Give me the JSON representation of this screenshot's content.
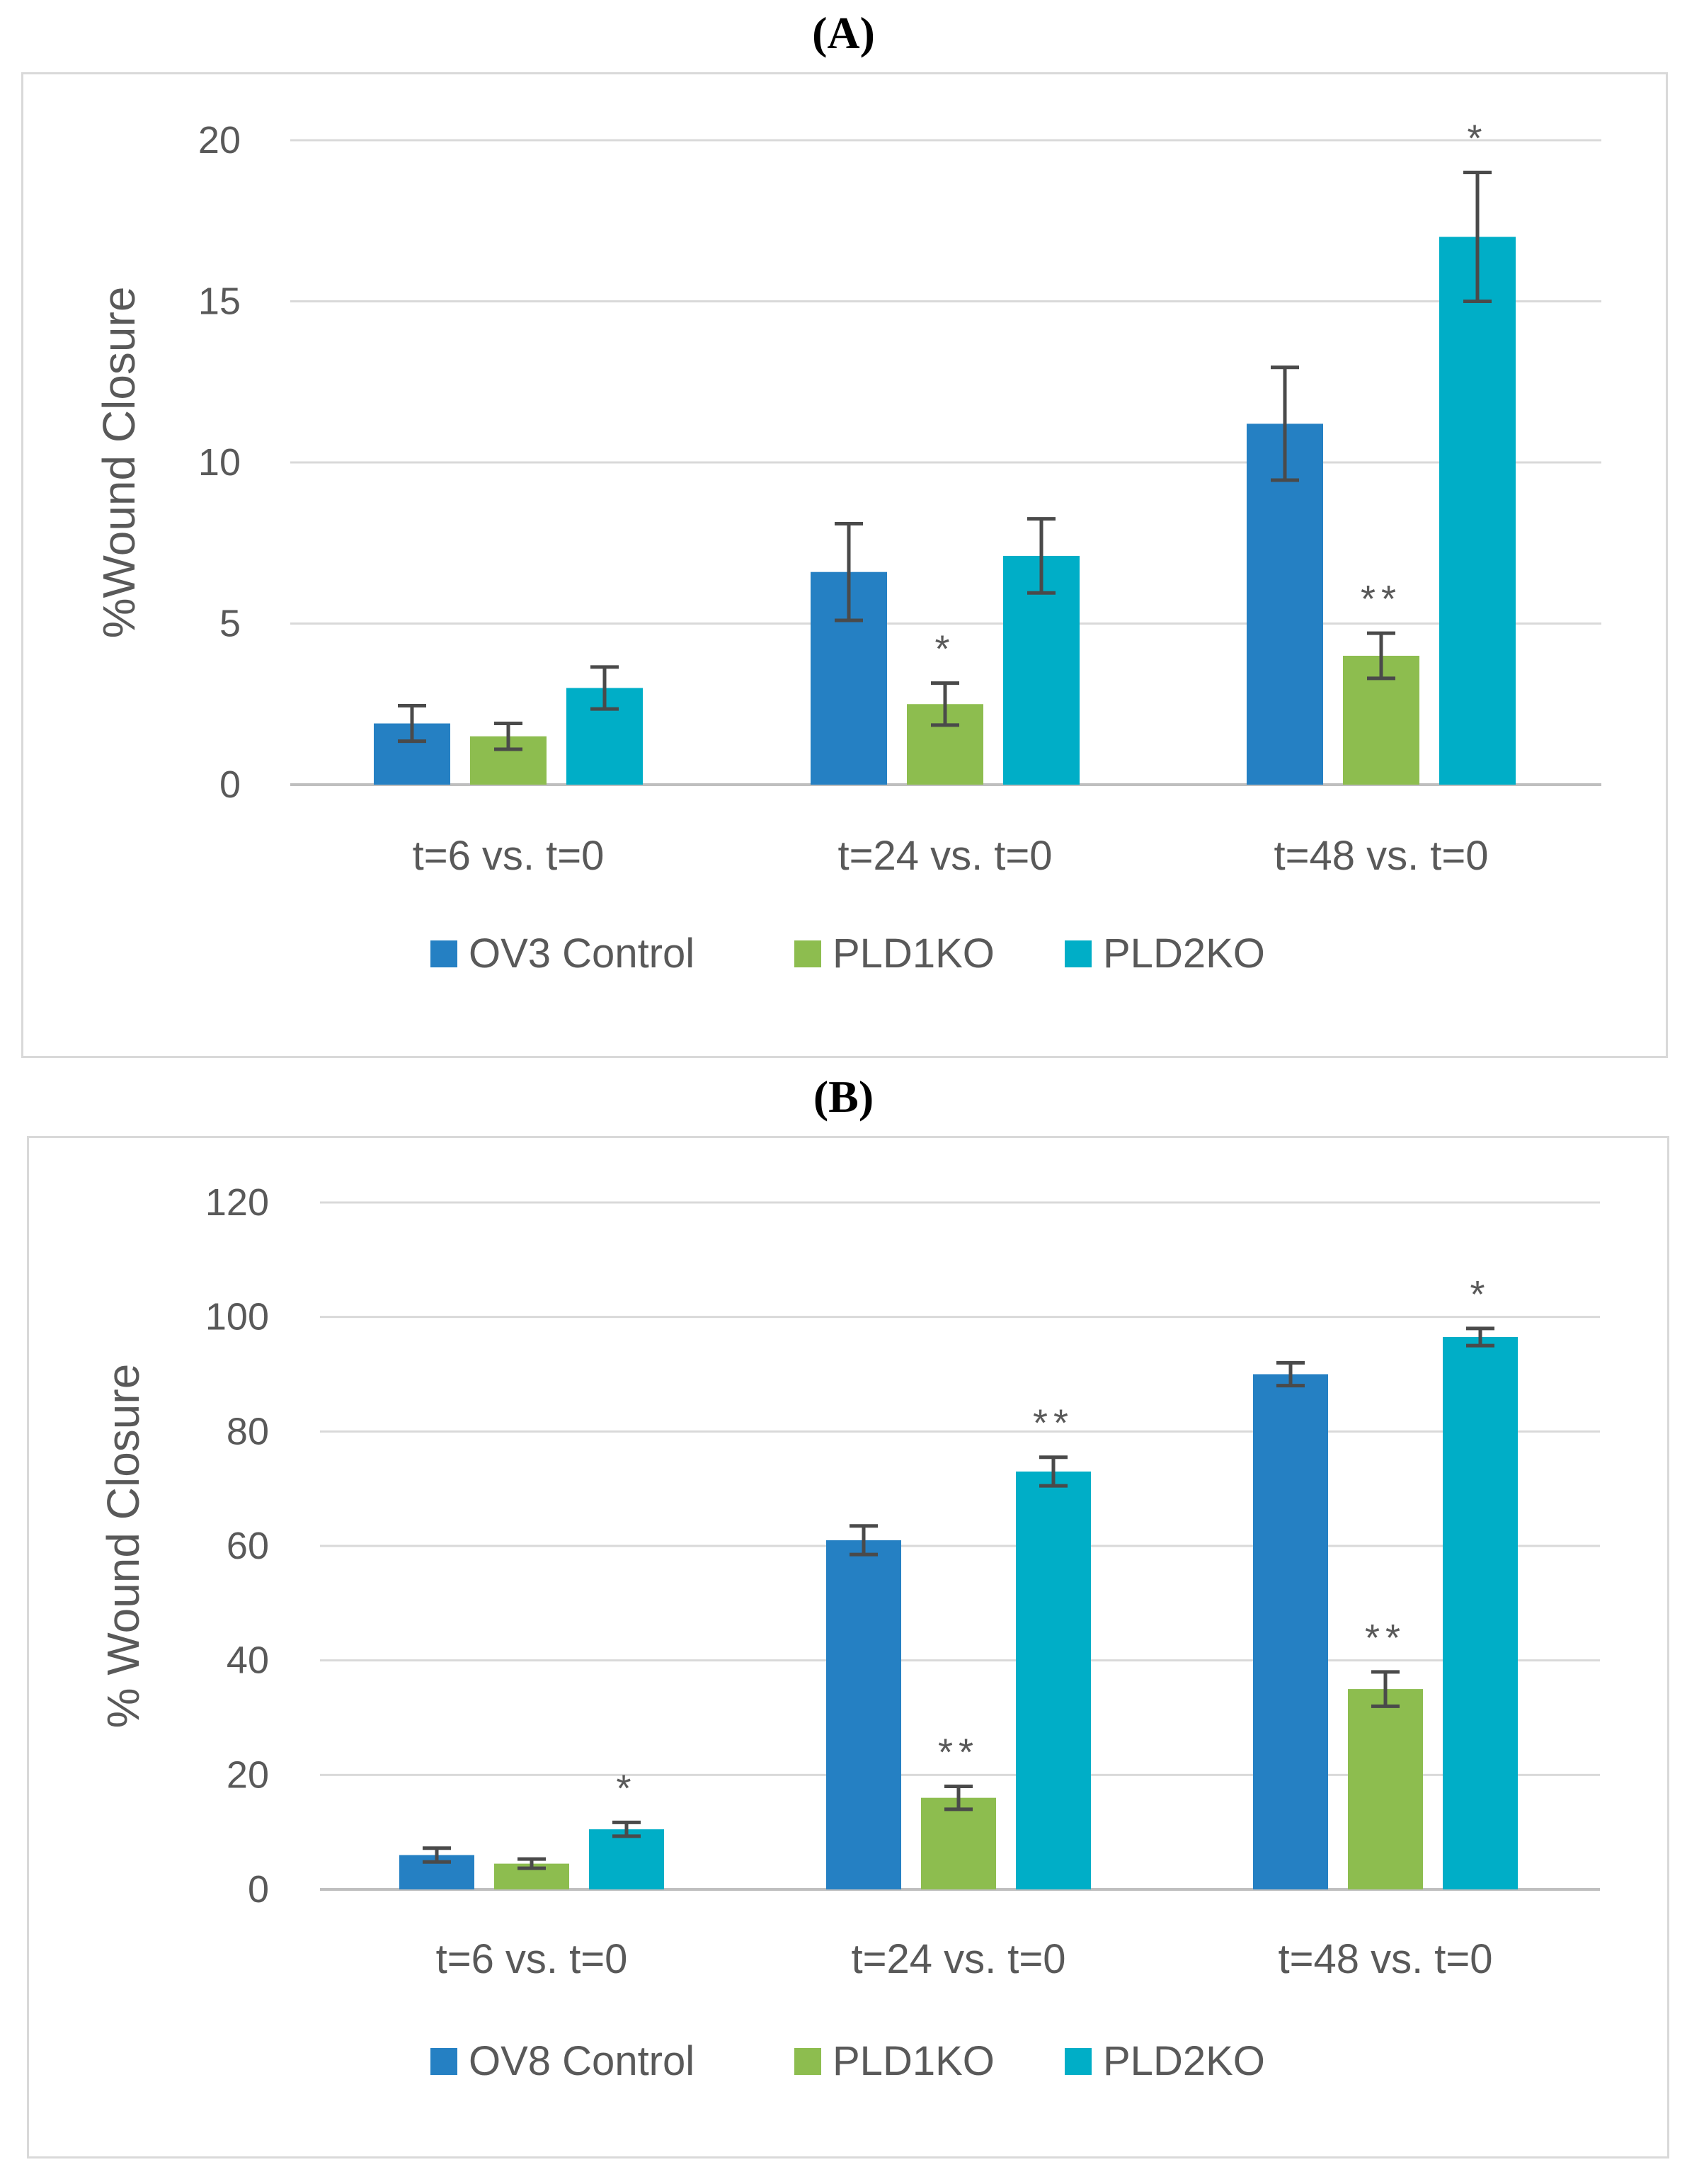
{
  "chart_data": [
    {
      "type": "bar",
      "panel": "(A)",
      "ylabel": "%Wound Closure",
      "ylim": [
        0,
        20
      ],
      "yticks": [
        0,
        5,
        10,
        15,
        20
      ],
      "categories": [
        "t=6 vs. t=0",
        "t=24 vs. t=0",
        "t=48 vs. t=0"
      ],
      "series": [
        {
          "name": "OV3 Control",
          "color": "#2580C3",
          "values": [
            1.9,
            6.6,
            11.2
          ],
          "errors": [
            0.55,
            1.5,
            1.75
          ],
          "sig": [
            "",
            "",
            ""
          ]
        },
        {
          "name": "PLD1KO",
          "color": "#8DBD4F",
          "values": [
            1.5,
            2.5,
            4.0
          ],
          "errors": [
            0.4,
            0.65,
            0.7
          ],
          "sig": [
            "",
            "*",
            "**"
          ]
        },
        {
          "name": "PLD2KO",
          "color": "#00AEC7",
          "values": [
            3.0,
            7.1,
            17.0
          ],
          "errors": [
            0.65,
            1.15,
            2.0
          ],
          "sig": [
            "",
            "",
            "*"
          ]
        }
      ],
      "legend": "bottom",
      "grid": true
    },
    {
      "type": "bar",
      "panel": "(B)",
      "ylabel": "% Wound Closure",
      "ylim": [
        0,
        120
      ],
      "yticks": [
        0,
        20,
        40,
        60,
        80,
        100,
        120
      ],
      "categories": [
        "t=6 vs. t=0",
        "t=24 vs. t=0",
        "t=48 vs. t=0"
      ],
      "series": [
        {
          "name": "OV8 Control",
          "color": "#2580C3",
          "values": [
            6,
            61,
            90
          ],
          "errors": [
            1.2,
            2.5,
            2.0
          ],
          "sig": [
            "",
            "",
            ""
          ]
        },
        {
          "name": "PLD1KO",
          "color": "#8DBD4F",
          "values": [
            4.5,
            16,
            35
          ],
          "errors": [
            0.8,
            2.0,
            3.0
          ],
          "sig": [
            "",
            "**",
            "**"
          ]
        },
        {
          "name": "PLD2KO",
          "color": "#00AEC7",
          "values": [
            10.5,
            73,
            96.5
          ],
          "errors": [
            1.2,
            2.5,
            1.5
          ],
          "sig": [
            "*",
            "**",
            "*"
          ]
        }
      ],
      "legend": "bottom",
      "grid": true
    }
  ]
}
